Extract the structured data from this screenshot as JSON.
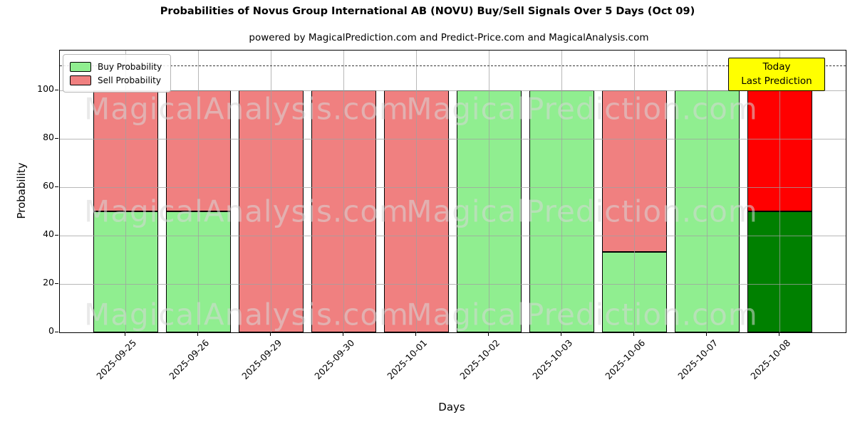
{
  "figure": {
    "title": "Probabilities of Novus Group International AB (NOVU) Buy/Sell Signals Over 5 Days (Oct 09)",
    "subtitle": "powered by MagicalPrediction.com and Predict-Price.com and MagicalAnalysis.com"
  },
  "legend": {
    "items": [
      {
        "label": "Buy Probability",
        "color": "#90EE90"
      },
      {
        "label": "Sell Probability",
        "color": "#F08080"
      }
    ]
  },
  "annotation": {
    "line1": "Today",
    "line2": "Last Prediction",
    "bg": "#FFFF00",
    "border": "#000000"
  },
  "watermarks": {
    "left": "MagicalAnalysis.com",
    "right": "MagicalPrediction.com"
  },
  "chart_data": {
    "type": "bar",
    "stacked": true,
    "title": "Probabilities of Novus Group International AB (NOVU) Buy/Sell Signals Over 5 Days (Oct 09)",
    "subtitle": "powered by MagicalPrediction.com and Predict-Price.com and MagicalAnalysis.com",
    "xlabel": "Days",
    "ylabel": "Probability",
    "categories": [
      "2025-09-25",
      "2025-09-26",
      "2025-09-29",
      "2025-09-30",
      "2025-10-01",
      "2025-10-02",
      "2025-10-03",
      "2025-10-06",
      "2025-10-07",
      "2025-10-08"
    ],
    "series": [
      {
        "name": "Buy Probability",
        "color": "#90EE90",
        "today_color": "#008000",
        "values": [
          50,
          50,
          0,
          0,
          0,
          100,
          100,
          33.33,
          100,
          50
        ]
      },
      {
        "name": "Sell Probability",
        "color": "#F08080",
        "today_color": "#FF0000",
        "values": [
          50,
          50,
          100,
          100,
          100,
          0,
          0,
          66.67,
          0,
          50
        ]
      }
    ],
    "today_index": 9,
    "yticks": [
      0,
      20,
      40,
      60,
      80,
      100
    ],
    "ylim": [
      0,
      116.5
    ],
    "threshold_line_y": 110,
    "grid": true,
    "legend_position": "upper left",
    "bar_edge_color": "#000000"
  }
}
